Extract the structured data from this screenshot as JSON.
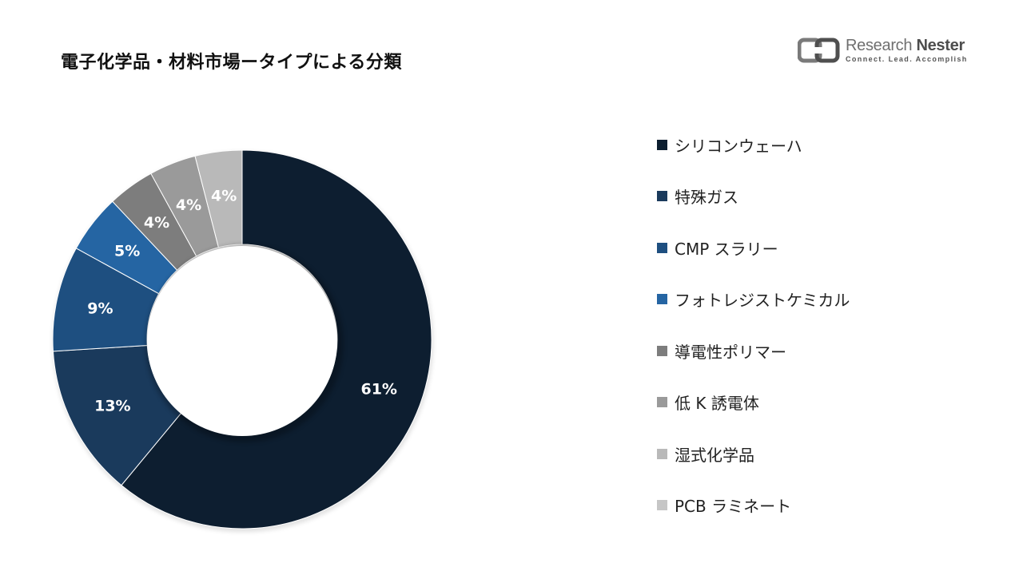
{
  "title": "電子化学品・材料市場ータイプによる分類",
  "logo": {
    "name_part1": "Research",
    "name_part2": "Nester",
    "tagline": "Connect. Lead. Accomplish"
  },
  "chart_data": {
    "type": "pie",
    "style": "donut",
    "categories": [
      "シリコンウェーハ",
      "特殊ガス",
      "CMP スラリー",
      "フォトレジストケミカル",
      "導電性ポリマー",
      "低 K 誘電体",
      "湿式化学品",
      "PCB ラミネート"
    ],
    "values": [
      61,
      13,
      9,
      5,
      4,
      4,
      4,
      0
    ],
    "labels": [
      "61%",
      "13%",
      "9%",
      "5%",
      "4%",
      "4%",
      "4%",
      ""
    ],
    "colors": [
      "#0d1e30",
      "#1a3a5c",
      "#1e4f80",
      "#2565a3",
      "#7d7d7d",
      "#9a9a9a",
      "#b9b9b9",
      "#c6c6c6"
    ],
    "legend_position": "right"
  }
}
